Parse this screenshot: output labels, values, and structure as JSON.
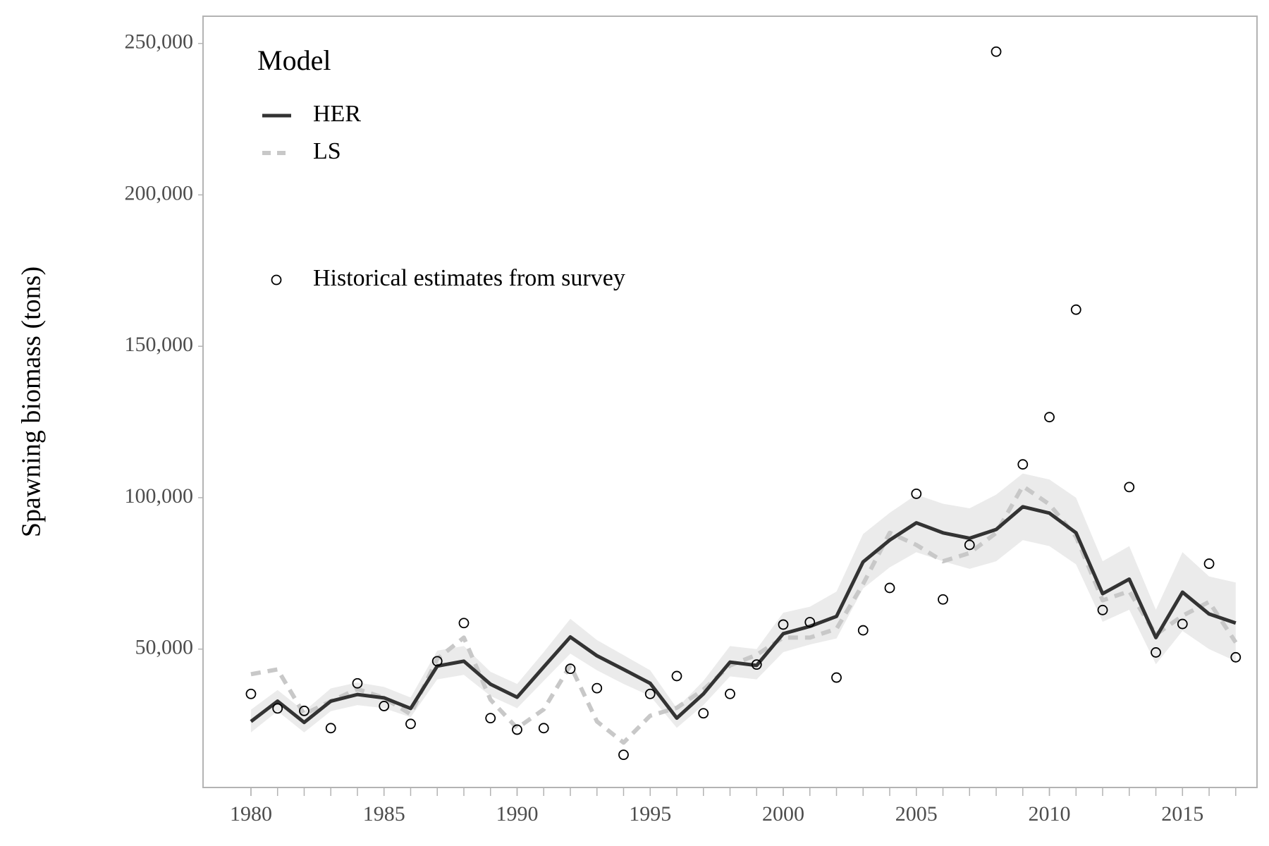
{
  "chart_data": {
    "type": "line",
    "y_label": "Spawning biomass (tons)",
    "legend_title": "Model",
    "legend_position": "top-left",
    "x": [
      1980,
      1981,
      1982,
      1983,
      1984,
      1985,
      1986,
      1987,
      1988,
      1989,
      1990,
      1991,
      1992,
      1993,
      1994,
      1995,
      1996,
      1997,
      1998,
      1999,
      2000,
      2001,
      2002,
      2003,
      2004,
      2005,
      2006,
      2007,
      2008,
      2009,
      2010,
      2011,
      2012,
      2013,
      2014,
      2015,
      2016,
      2017
    ],
    "xlim": [
      1978.2,
      2017.8
    ],
    "xticks": [
      1980,
      1985,
      1990,
      1995,
      2000,
      2005,
      2010,
      2015
    ],
    "ylim": [
      4300,
      259000
    ],
    "yticks": [
      {
        "value": 50000,
        "label": "50,000"
      },
      {
        "value": 100000,
        "label": "100,000"
      },
      {
        "value": 150000,
        "label": "150,000"
      },
      {
        "value": 200000,
        "label": "200,000"
      },
      {
        "value": 250000,
        "label": "250,000"
      }
    ],
    "grid": false,
    "series": [
      {
        "name": "HER",
        "type": "line",
        "color": "#333333",
        "dash": "solid",
        "band_color": "#ebebeb",
        "values": [
          26100,
          32800,
          25800,
          32800,
          35000,
          33900,
          30400,
          44400,
          46000,
          38400,
          34100,
          44100,
          54000,
          47800,
          43300,
          38700,
          27200,
          35200,
          45700,
          44600,
          55100,
          57500,
          60800,
          78800,
          86000,
          91700,
          88400,
          86600,
          89500,
          97000,
          94900,
          88400,
          68300,
          73100,
          53800,
          68800,
          61600,
          58600
        ],
        "lower": [
          22500,
          29500,
          22500,
          29500,
          31500,
          30500,
          27500,
          40000,
          41500,
          34500,
          30500,
          39500,
          48500,
          43000,
          38500,
          34500,
          24000,
          31500,
          41000,
          40000,
          49000,
          51500,
          53500,
          70000,
          77000,
          82000,
          79000,
          76500,
          79000,
          86000,
          84000,
          78000,
          59000,
          63000,
          45000,
          56000,
          50000,
          46000
        ],
        "upper": [
          30000,
          36500,
          29500,
          37000,
          39000,
          37500,
          34000,
          49500,
          51000,
          42500,
          38500,
          49000,
          60000,
          53000,
          48000,
          43000,
          30500,
          39500,
          51000,
          50000,
          62000,
          64000,
          69000,
          88000,
          95000,
          101000,
          98000,
          96500,
          101000,
          108000,
          106000,
          100000,
          79000,
          84000,
          63000,
          82000,
          74000,
          72000
        ]
      },
      {
        "name": "LS",
        "type": "line",
        "color": "#c8c8c8",
        "dash": "dashed",
        "values": [
          41700,
          43300,
          28500,
          32800,
          36800,
          33900,
          28500,
          46800,
          53800,
          33300,
          23900,
          30100,
          44600,
          26100,
          19100,
          28000,
          30600,
          36600,
          44600,
          48100,
          53800,
          53800,
          56700,
          71500,
          88400,
          84400,
          79000,
          81700,
          88400,
          103800,
          97800,
          87100,
          66100,
          69100,
          54800,
          61000,
          65600,
          52200
        ]
      },
      {
        "name": "Historical estimates from survey",
        "type": "scatter",
        "color": "#000000",
        "values": [
          35200,
          30400,
          29600,
          23900,
          38700,
          31200,
          25300,
          46000,
          58600,
          27200,
          23400,
          23900,
          43500,
          37100,
          15100,
          35200,
          41100,
          28800,
          35200,
          44900,
          58100,
          58900,
          40600,
          56200,
          70200,
          101300,
          66400,
          84400,
          247300,
          111000,
          126600,
          162100,
          62900,
          103500,
          48900,
          58300,
          78200,
          47300
        ]
      }
    ]
  }
}
